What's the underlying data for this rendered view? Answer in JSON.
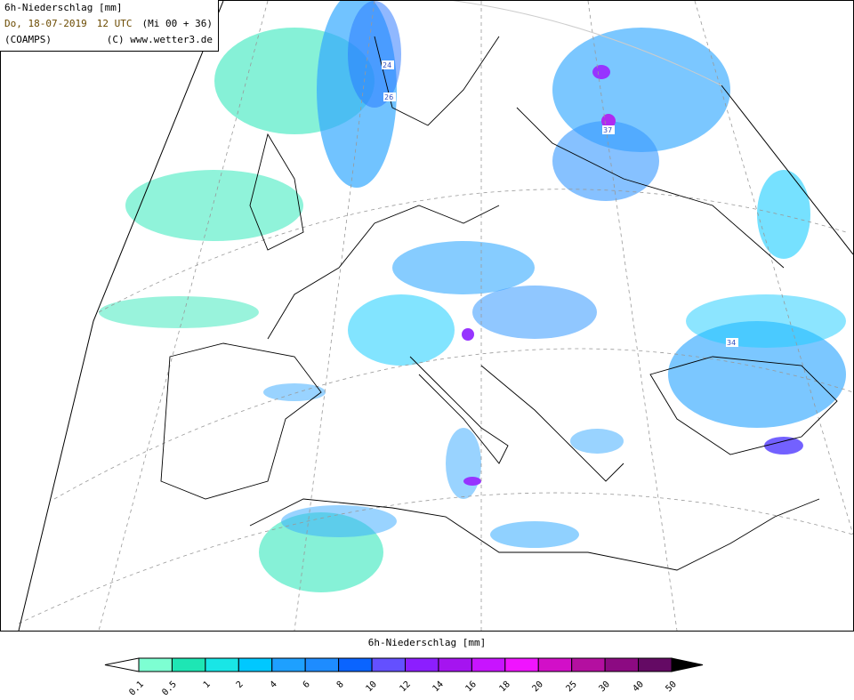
{
  "header": {
    "title": "6h-Niederschlag [mm]",
    "date": "Do, 18-07-2019",
    "time": "12 UTC",
    "run": "(Mi 00 + 36)",
    "model": "(COAMPS)",
    "credit": "(C) www.wetter3.de"
  },
  "map": {
    "max_labels": [
      "24",
      "26",
      "37",
      "34"
    ]
  },
  "legend": {
    "title": "6h-Niederschlag [mm]",
    "ticks": [
      "0.1",
      "0.5",
      "1",
      "2",
      "4",
      "6",
      "8",
      "10",
      "12",
      "14",
      "16",
      "18",
      "20",
      "25",
      "30",
      "40",
      "50"
    ],
    "colors": [
      "#7dffd2",
      "#1ee6b4",
      "#19e6e6",
      "#00c8ff",
      "#1ea0ff",
      "#1e8cff",
      "#0a64ff",
      "#6450ff",
      "#8c1eff",
      "#a514f0",
      "#c814ff",
      "#f014ff",
      "#d20fc8",
      "#b40fa0",
      "#8c0a82",
      "#640a64"
    ],
    "below_color": "#ffffff",
    "above_color": "#000000"
  }
}
